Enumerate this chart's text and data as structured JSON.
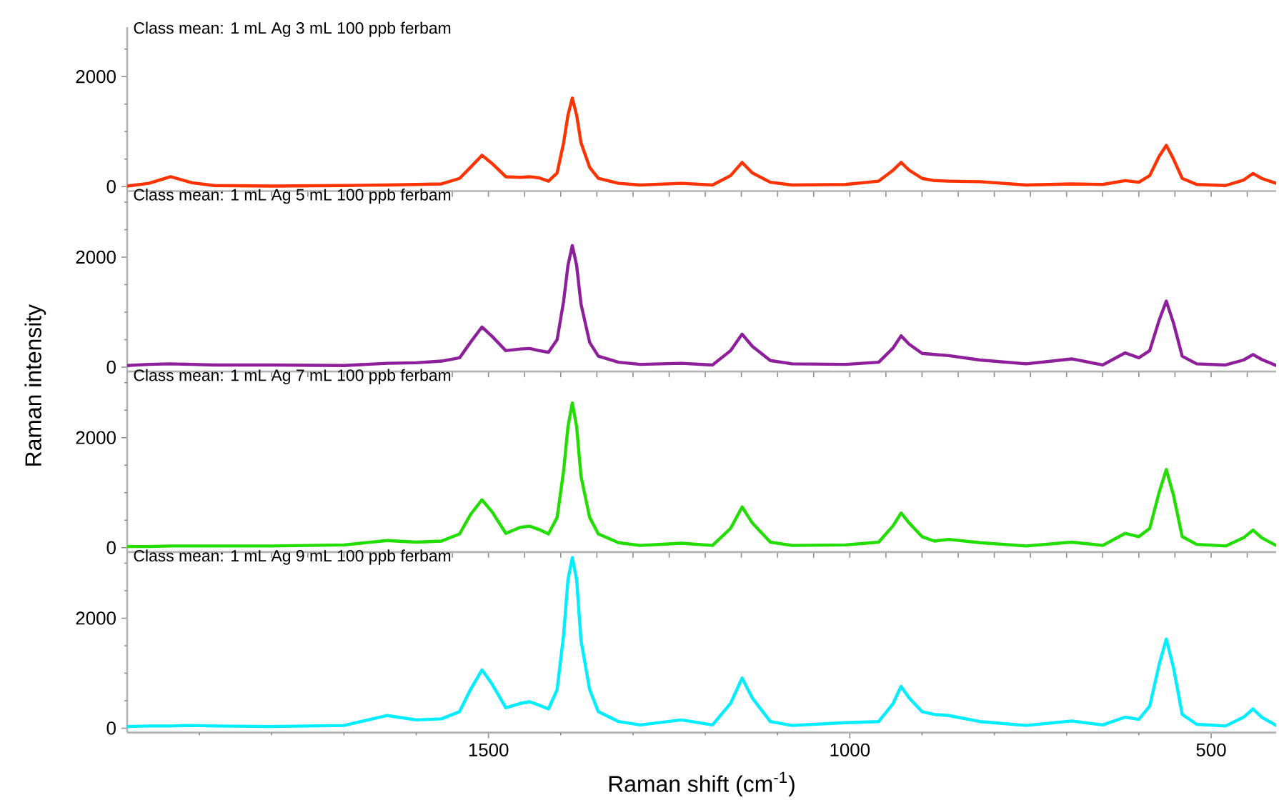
{
  "chart_data": [
    {
      "type": "line",
      "title": "Class mean: 1 mL Ag 3 mL 100 ppb ferbam",
      "xlim": [
        2000,
        410
      ],
      "ylim": [
        -80,
        2900
      ],
      "yticks": [
        0,
        {
          "value": 500,
          "label": null
        },
        {
          "value": 1000,
          "label": null
        },
        {
          "value": 1500,
          "label": null
        },
        2000,
        {
          "value": 2500,
          "label": null
        }
      ],
      "tick_labels": "y",
      "x": [
        2000,
        1970,
        1940,
        1910,
        1880,
        1800,
        1700,
        1640,
        1600,
        1565,
        1540,
        1525,
        1509,
        1495,
        1476,
        1456,
        1443,
        1430,
        1417,
        1405,
        1396,
        1390,
        1384,
        1378,
        1372,
        1360,
        1348,
        1320,
        1290,
        1233,
        1190,
        1165,
        1149,
        1135,
        1110,
        1080,
        1006,
        960,
        940,
        929,
        918,
        900,
        883,
        863,
        820,
        756,
        693,
        650,
        619,
        600,
        585,
        572,
        562,
        552,
        540,
        520,
        480,
        455,
        442,
        430,
        410
      ],
      "series": [
        {
          "color": "#ff3300",
          "values": [
            10,
            60,
            180,
            70,
            20,
            10,
            20,
            30,
            40,
            50,
            150,
            350,
            570,
            420,
            180,
            170,
            180,
            160,
            100,
            250,
            800,
            1300,
            1610,
            1300,
            800,
            350,
            150,
            60,
            30,
            60,
            30,
            200,
            440,
            250,
            80,
            30,
            40,
            100,
            300,
            440,
            300,
            150,
            110,
            100,
            90,
            30,
            50,
            40,
            110,
            80,
            200,
            550,
            750,
            500,
            150,
            40,
            20,
            120,
            240,
            150,
            60
          ]
        }
      ]
    },
    {
      "type": "line",
      "title": "Class mean: 1 mL Ag 5 mL 100 ppb ferbam",
      "xlim": [
        2000,
        410
      ],
      "ylim": [
        -80,
        3150
      ],
      "yticks": [
        0,
        {
          "value": 500,
          "label": null
        },
        {
          "value": 1000,
          "label": null
        },
        {
          "value": 1500,
          "label": null
        },
        2000,
        {
          "value": 2500,
          "label": null
        },
        {
          "value": 3000,
          "label": null
        }
      ],
      "tick_labels": "y",
      "x": [
        2000,
        1970,
        1940,
        1910,
        1880,
        1800,
        1700,
        1640,
        1600,
        1565,
        1540,
        1525,
        1509,
        1495,
        1476,
        1456,
        1443,
        1430,
        1417,
        1405,
        1396,
        1390,
        1384,
        1378,
        1372,
        1360,
        1348,
        1320,
        1290,
        1233,
        1190,
        1165,
        1149,
        1135,
        1110,
        1080,
        1006,
        960,
        940,
        929,
        918,
        900,
        883,
        863,
        820,
        756,
        693,
        650,
        619,
        600,
        585,
        572,
        562,
        552,
        540,
        520,
        480,
        455,
        442,
        430,
        410
      ],
      "series": [
        {
          "color": "#8e1f9a",
          "values": [
            30,
            50,
            60,
            50,
            40,
            40,
            30,
            70,
            80,
            110,
            170,
            450,
            730,
            560,
            300,
            330,
            340,
            300,
            270,
            500,
            1200,
            1850,
            2210,
            1850,
            1150,
            450,
            200,
            90,
            50,
            70,
            40,
            300,
            600,
            380,
            120,
            60,
            50,
            90,
            350,
            570,
            420,
            250,
            230,
            210,
            130,
            60,
            150,
            40,
            260,
            170,
            300,
            850,
            1200,
            800,
            200,
            60,
            40,
            130,
            230,
            140,
            30
          ]
        }
      ]
    },
    {
      "type": "line",
      "title": "Class mean: 1 mL Ag 7 mL 100 ppb ferbam",
      "ylabel": "Raman intensity",
      "xlim": [
        2000,
        410
      ],
      "ylim": [
        -80,
        3150
      ],
      "yticks": [
        0,
        {
          "value": 500,
          "label": null
        },
        {
          "value": 1000,
          "label": null
        },
        {
          "value": 1500,
          "label": null
        },
        2000,
        {
          "value": 2500,
          "label": null
        },
        {
          "value": 3000,
          "label": null
        }
      ],
      "tick_labels": "y",
      "x": [
        2000,
        1970,
        1940,
        1910,
        1880,
        1800,
        1700,
        1640,
        1600,
        1565,
        1540,
        1525,
        1509,
        1495,
        1476,
        1456,
        1443,
        1430,
        1417,
        1405,
        1396,
        1390,
        1384,
        1378,
        1372,
        1360,
        1348,
        1320,
        1290,
        1233,
        1190,
        1165,
        1149,
        1135,
        1110,
        1080,
        1006,
        960,
        940,
        929,
        918,
        900,
        883,
        863,
        820,
        756,
        693,
        650,
        619,
        600,
        585,
        572,
        562,
        552,
        540,
        520,
        480,
        455,
        442,
        430,
        410
      ],
      "series": [
        {
          "color": "#22dd00",
          "values": [
            20,
            20,
            30,
            30,
            30,
            30,
            50,
            130,
            100,
            120,
            250,
            600,
            870,
            650,
            260,
            370,
            390,
            330,
            250,
            550,
            1400,
            2200,
            2630,
            2200,
            1300,
            550,
            250,
            90,
            40,
            80,
            40,
            350,
            740,
            450,
            100,
            40,
            50,
            100,
            400,
            630,
            450,
            200,
            120,
            150,
            90,
            30,
            100,
            40,
            260,
            200,
            350,
            1000,
            1420,
            950,
            200,
            60,
            30,
            180,
            320,
            180,
            40
          ]
        }
      ]
    },
    {
      "type": "line",
      "title": "Class mean: 1 mL Ag 9 mL 100 ppb ferbam",
      "xlabel": "Raman shift (cm$^{-1}$)",
      "xlim": [
        2000,
        410
      ],
      "ylim": [
        -80,
        3150
      ],
      "yticks": [
        0,
        {
          "value": 500,
          "label": null
        },
        {
          "value": 1000,
          "label": null
        },
        {
          "value": 1500,
          "label": null
        },
        2000,
        {
          "value": 2500,
          "label": null
        },
        {
          "value": 3000,
          "label": null
        }
      ],
      "xticks": [
        {
          "value": 1900,
          "label": null
        },
        {
          "value": 1800,
          "label": null
        },
        {
          "value": 1700,
          "label": null
        },
        {
          "value": 1600,
          "label": null
        },
        1500,
        {
          "value": 1400,
          "label": null
        },
        {
          "value": 1300,
          "label": null
        },
        {
          "value": 1200,
          "label": null
        },
        {
          "value": 1100,
          "label": null
        },
        1000,
        {
          "value": 900,
          "label": null
        },
        {
          "value": 800,
          "label": null
        },
        {
          "value": 700,
          "label": null
        },
        {
          "value": 600,
          "label": null
        },
        500
      ],
      "x": [
        2000,
        1970,
        1940,
        1910,
        1880,
        1800,
        1700,
        1640,
        1600,
        1565,
        1540,
        1525,
        1509,
        1495,
        1476,
        1456,
        1443,
        1430,
        1417,
        1405,
        1396,
        1390,
        1384,
        1378,
        1372,
        1360,
        1348,
        1320,
        1290,
        1233,
        1190,
        1165,
        1149,
        1135,
        1110,
        1080,
        1006,
        960,
        940,
        929,
        918,
        900,
        883,
        863,
        820,
        756,
        693,
        650,
        619,
        600,
        585,
        572,
        562,
        552,
        540,
        520,
        480,
        455,
        442,
        430,
        410
      ],
      "series": [
        {
          "color": "#00eeff",
          "values": [
            30,
            40,
            40,
            50,
            40,
            30,
            50,
            230,
            150,
            170,
            300,
            700,
            1060,
            800,
            370,
            450,
            480,
            420,
            350,
            700,
            1700,
            2700,
            3100,
            2700,
            1600,
            700,
            300,
            120,
            60,
            150,
            60,
            450,
            910,
            550,
            120,
            50,
            100,
            120,
            450,
            760,
            550,
            300,
            250,
            230,
            120,
            50,
            130,
            60,
            200,
            160,
            400,
            1150,
            1620,
            1100,
            250,
            70,
            40,
            200,
            350,
            200,
            50
          ]
        }
      ]
    }
  ]
}
